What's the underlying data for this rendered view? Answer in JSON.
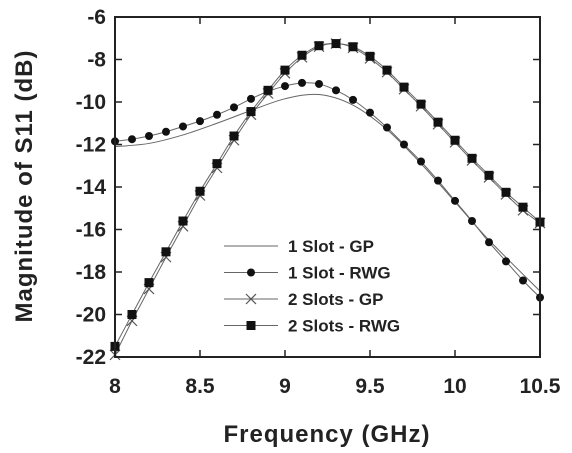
{
  "chart_data": {
    "type": "line",
    "xlabel": "Frequency (GHz)",
    "ylabel": "Magnitude of S11 (dB)",
    "xlim": [
      8,
      10.5
    ],
    "ylim": [
      -22,
      -6
    ],
    "xticks": [
      8,
      8.5,
      9,
      9.5,
      10,
      10.5
    ],
    "xtick_labels": [
      "8",
      "8.5",
      "9",
      "9.5",
      "10",
      "10.5"
    ],
    "yticks": [
      -22,
      -20,
      -18,
      -16,
      -14,
      -12,
      -10,
      -8,
      -6
    ],
    "ytick_labels": [
      "-22",
      "-20",
      "-18",
      "-16",
      "-14",
      "-12",
      "-10",
      "-8",
      "-6"
    ],
    "grid": false,
    "legend_position": "bottom-center",
    "series": [
      {
        "name": "1 Slot - GP",
        "marker": "none",
        "x": [
          8.0,
          8.2,
          8.4,
          8.6,
          8.8,
          9.0,
          9.2,
          9.4,
          9.6,
          9.8,
          10.0,
          10.2,
          10.5
        ],
        "y": [
          -12.1,
          -11.95,
          -11.55,
          -11.0,
          -10.4,
          -9.85,
          -9.65,
          -10.15,
          -11.3,
          -12.9,
          -14.7,
          -16.5,
          -18.9
        ]
      },
      {
        "name": "1 Slot - RWG",
        "marker": "circle",
        "x": [
          8.0,
          8.1,
          8.2,
          8.3,
          8.4,
          8.5,
          8.6,
          8.7,
          8.8,
          8.9,
          9.0,
          9.1,
          9.2,
          9.3,
          9.4,
          9.5,
          9.6,
          9.7,
          9.8,
          9.9,
          10.0,
          10.1,
          10.2,
          10.3,
          10.4,
          10.5
        ],
        "y": [
          -11.85,
          -11.75,
          -11.6,
          -11.4,
          -11.15,
          -10.9,
          -10.6,
          -10.25,
          -9.85,
          -9.5,
          -9.25,
          -9.1,
          -9.15,
          -9.45,
          -9.9,
          -10.5,
          -11.2,
          -12.0,
          -12.8,
          -13.7,
          -14.65,
          -15.6,
          -16.6,
          -17.5,
          -18.4,
          -19.2
        ]
      },
      {
        "name": "2 Slots - GP",
        "marker": "x",
        "x": [
          8.0,
          8.1,
          8.2,
          8.3,
          8.4,
          8.5,
          8.6,
          8.7,
          8.8,
          8.9,
          9.0,
          9.1,
          9.2,
          9.3,
          9.4,
          9.5,
          9.6,
          9.7,
          9.8,
          9.9,
          10.0,
          10.1,
          10.2,
          10.3,
          10.4,
          10.5
        ],
        "y": [
          -21.9,
          -20.3,
          -18.8,
          -17.3,
          -15.85,
          -14.4,
          -13.1,
          -11.8,
          -10.6,
          -9.6,
          -8.65,
          -7.9,
          -7.4,
          -7.25,
          -7.45,
          -7.95,
          -8.6,
          -9.4,
          -10.2,
          -11.05,
          -11.9,
          -12.75,
          -13.55,
          -14.35,
          -15.1,
          -15.7
        ]
      },
      {
        "name": "2 Slots - RWG",
        "marker": "square",
        "x": [
          8.0,
          8.1,
          8.2,
          8.3,
          8.4,
          8.5,
          8.6,
          8.7,
          8.8,
          8.9,
          9.0,
          9.1,
          9.2,
          9.3,
          9.4,
          9.5,
          9.6,
          9.7,
          9.8,
          9.9,
          10.0,
          10.1,
          10.2,
          10.3,
          10.4,
          10.5
        ],
        "y": [
          -21.5,
          -20.0,
          -18.5,
          -17.05,
          -15.6,
          -14.2,
          -12.9,
          -11.6,
          -10.45,
          -9.45,
          -8.5,
          -7.8,
          -7.35,
          -7.25,
          -7.4,
          -7.85,
          -8.5,
          -9.3,
          -10.1,
          -10.95,
          -11.8,
          -12.65,
          -13.45,
          -14.25,
          -14.95,
          -15.65
        ]
      }
    ]
  }
}
